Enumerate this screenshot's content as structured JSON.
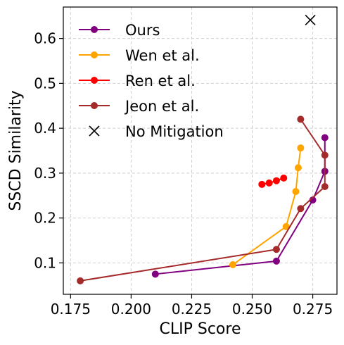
{
  "chart_data": {
    "type": "line",
    "xlabel": "CLIP Score",
    "ylabel": "SSCD Similarity",
    "xlim": [
      0.172,
      0.285
    ],
    "ylim": [
      0.03,
      0.67
    ],
    "xticks": [
      0.175,
      0.2,
      0.225,
      0.25,
      0.275
    ],
    "xtick_labels": [
      "0.175",
      "0.200",
      "0.225",
      "0.250",
      "0.275"
    ],
    "yticks": [
      0.1,
      0.2,
      0.3,
      0.4,
      0.5,
      0.6
    ],
    "ytick_labels": [
      "0.1",
      "0.2",
      "0.3",
      "0.4",
      "0.5",
      "0.6"
    ],
    "grid": true,
    "legend_position": "top-left",
    "series": [
      {
        "name": "Ours",
        "color": "#800080",
        "marker": "circle",
        "x": [
          0.21,
          0.26,
          0.275,
          0.28,
          0.28
        ],
        "y": [
          0.075,
          0.104,
          0.24,
          0.304,
          0.379
        ]
      },
      {
        "name": "Wen et al.",
        "color": "#FFA500",
        "marker": "circle",
        "x": [
          0.242,
          0.264,
          0.268,
          0.269,
          0.27
        ],
        "y": [
          0.096,
          0.181,
          0.259,
          0.312,
          0.356
        ]
      },
      {
        "name": "Ren et al.",
        "color": "#FF0000",
        "marker": "circle",
        "x": [
          0.254,
          0.257,
          0.26,
          0.263
        ],
        "y": [
          0.275,
          0.278,
          0.283,
          0.289
        ]
      },
      {
        "name": "Jeon et al.",
        "color": "#A52A2A",
        "marker": "circle",
        "x": [
          0.179,
          0.26,
          0.27,
          0.28,
          0.28,
          0.27
        ],
        "y": [
          0.06,
          0.13,
          0.221,
          0.27,
          0.34,
          0.42
        ]
      },
      {
        "name": "No Mitigation",
        "color": "#000000",
        "marker": "x",
        "x": [
          0.274
        ],
        "y": [
          0.641
        ]
      }
    ]
  }
}
